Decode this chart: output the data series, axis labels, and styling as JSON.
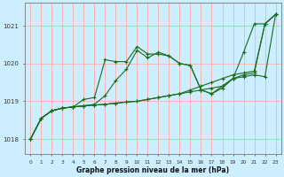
{
  "xlabel": "Graphe pression niveau de la mer (hPa)",
  "background_color": "#cceeff",
  "grid_color": "#ffaaaa",
  "line_color": "#1a6b1a",
  "x_ticks": [
    0,
    1,
    2,
    3,
    4,
    5,
    6,
    7,
    8,
    9,
    10,
    11,
    12,
    13,
    14,
    15,
    16,
    17,
    18,
    19,
    20,
    21,
    22,
    23
  ],
  "xlim": [
    -0.5,
    23.5
  ],
  "ylim": [
    1017.6,
    1021.6
  ],
  "y_ticks": [
    1018,
    1019,
    1020,
    1021
  ],
  "lines": [
    [
      1018.0,
      1018.55,
      1018.75,
      1018.82,
      1018.85,
      1018.88,
      1018.9,
      1018.92,
      1018.95,
      1018.98,
      1019.0,
      1019.05,
      1019.1,
      1019.15,
      1019.2,
      1019.3,
      1019.4,
      1019.5,
      1019.6,
      1019.7,
      1019.75,
      1019.8,
      1021.05,
      1021.3
    ],
    [
      1018.0,
      1018.55,
      1018.75,
      1018.82,
      1018.85,
      1018.88,
      1018.92,
      1019.15,
      1019.55,
      1019.85,
      1020.35,
      1020.15,
      1020.3,
      1020.2,
      1020.0,
      1019.95,
      1019.3,
      1019.2,
      1019.35,
      1019.6,
      1019.65,
      1019.7,
      1019.65,
      1021.3
    ],
    [
      1018.0,
      1018.55,
      1018.75,
      1018.82,
      1018.85,
      1019.05,
      1019.1,
      1020.1,
      1020.05,
      1020.05,
      1020.45,
      1020.25,
      1020.25,
      1020.2,
      1020.0,
      1019.95,
      1019.3,
      1019.2,
      1019.4,
      1019.6,
      1020.3,
      1021.05,
      1021.05,
      1021.3
    ],
    [
      1018.0,
      1018.55,
      1018.75,
      1018.82,
      1018.85,
      1018.88,
      1018.9,
      1018.92,
      1018.95,
      1018.98,
      1019.0,
      1019.05,
      1019.1,
      1019.15,
      1019.2,
      1019.25,
      1019.3,
      1019.35,
      1019.4,
      1019.6,
      1019.7,
      1019.75,
      1021.05,
      1021.3
    ]
  ]
}
